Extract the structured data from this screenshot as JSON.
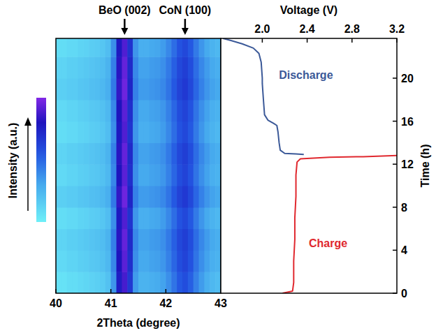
{
  "chart_data": [
    {
      "type": "heatmap",
      "xlabel": "2Theta (degree)",
      "xlim": [
        40,
        43
      ],
      "xticks": [
        40,
        41,
        42,
        43
      ],
      "ylim": [
        0,
        23.7
      ],
      "tick_labels": "x",
      "x": [
        40.05,
        40.15,
        40.25,
        40.35,
        40.45,
        40.55,
        40.65,
        40.75,
        40.85,
        40.95,
        41.05,
        41.15,
        41.25,
        41.35,
        41.45,
        41.55,
        41.65,
        41.75,
        41.85,
        41.95,
        42.05,
        42.15,
        42.25,
        42.35,
        42.45,
        42.55,
        42.65,
        42.75,
        42.85,
        42.95
      ],
      "y": [
        1,
        3,
        5,
        7,
        9,
        11,
        13,
        15,
        17,
        19,
        21,
        23
      ],
      "cells": [
        [
          0.06,
          0.06,
          0.08,
          0.08,
          0.1,
          0.11,
          0.13,
          0.14,
          0.16,
          0.2,
          0.36,
          0.76,
          0.88,
          0.66,
          0.34,
          0.26,
          0.26,
          0.28,
          0.29,
          0.32,
          0.38,
          0.46,
          0.54,
          0.58,
          0.52,
          0.42,
          0.34,
          0.28,
          0.24,
          0.22
        ],
        [
          0.1,
          0.1,
          0.12,
          0.12,
          0.14,
          0.15,
          0.17,
          0.18,
          0.2,
          0.24,
          0.4,
          0.8,
          0.92,
          0.7,
          0.38,
          0.3,
          0.3,
          0.32,
          0.33,
          0.36,
          0.42,
          0.5,
          0.58,
          0.62,
          0.56,
          0.46,
          0.38,
          0.32,
          0.28,
          0.26
        ],
        [
          0.12,
          0.12,
          0.14,
          0.14,
          0.16,
          0.17,
          0.19,
          0.2,
          0.22,
          0.26,
          0.42,
          0.82,
          0.94,
          0.72,
          0.4,
          0.32,
          0.32,
          0.34,
          0.35,
          0.38,
          0.44,
          0.52,
          0.6,
          0.64,
          0.58,
          0.48,
          0.4,
          0.34,
          0.3,
          0.28
        ],
        [
          0.08,
          0.08,
          0.1,
          0.1,
          0.12,
          0.13,
          0.15,
          0.16,
          0.18,
          0.22,
          0.38,
          0.78,
          0.9,
          0.68,
          0.36,
          0.28,
          0.28,
          0.3,
          0.31,
          0.34,
          0.4,
          0.48,
          0.56,
          0.6,
          0.54,
          0.44,
          0.36,
          0.3,
          0.26,
          0.24
        ],
        [
          0.14,
          0.14,
          0.16,
          0.16,
          0.18,
          0.19,
          0.21,
          0.22,
          0.24,
          0.28,
          0.44,
          0.84,
          0.96,
          0.74,
          0.42,
          0.34,
          0.34,
          0.36,
          0.37,
          0.4,
          0.46,
          0.54,
          0.62,
          0.66,
          0.6,
          0.5,
          0.42,
          0.36,
          0.32,
          0.3
        ],
        [
          0.1,
          0.1,
          0.12,
          0.12,
          0.14,
          0.15,
          0.17,
          0.18,
          0.2,
          0.24,
          0.4,
          0.8,
          0.92,
          0.7,
          0.38,
          0.3,
          0.3,
          0.32,
          0.33,
          0.36,
          0.42,
          0.5,
          0.58,
          0.62,
          0.56,
          0.46,
          0.38,
          0.32,
          0.28,
          0.26
        ],
        [
          0.12,
          0.12,
          0.14,
          0.14,
          0.16,
          0.17,
          0.19,
          0.2,
          0.22,
          0.26,
          0.42,
          0.82,
          0.94,
          0.72,
          0.4,
          0.32,
          0.32,
          0.34,
          0.35,
          0.38,
          0.44,
          0.52,
          0.6,
          0.64,
          0.58,
          0.48,
          0.4,
          0.34,
          0.3,
          0.28
        ],
        [
          0.08,
          0.08,
          0.1,
          0.1,
          0.12,
          0.13,
          0.15,
          0.16,
          0.18,
          0.22,
          0.38,
          0.78,
          0.9,
          0.68,
          0.36,
          0.28,
          0.28,
          0.3,
          0.31,
          0.34,
          0.4,
          0.48,
          0.56,
          0.6,
          0.54,
          0.44,
          0.36,
          0.3,
          0.26,
          0.24
        ],
        [
          0.1,
          0.1,
          0.12,
          0.12,
          0.14,
          0.15,
          0.17,
          0.18,
          0.2,
          0.24,
          0.4,
          0.8,
          0.92,
          0.7,
          0.38,
          0.3,
          0.3,
          0.32,
          0.33,
          0.36,
          0.42,
          0.5,
          0.58,
          0.62,
          0.56,
          0.46,
          0.38,
          0.32,
          0.28,
          0.26
        ],
        [
          0.14,
          0.14,
          0.16,
          0.16,
          0.18,
          0.19,
          0.21,
          0.22,
          0.24,
          0.28,
          0.44,
          0.84,
          0.96,
          0.74,
          0.42,
          0.34,
          0.34,
          0.36,
          0.37,
          0.4,
          0.46,
          0.54,
          0.62,
          0.66,
          0.6,
          0.5,
          0.42,
          0.36,
          0.32,
          0.3
        ],
        [
          0.12,
          0.12,
          0.14,
          0.14,
          0.16,
          0.17,
          0.19,
          0.2,
          0.22,
          0.26,
          0.42,
          0.82,
          0.94,
          0.72,
          0.4,
          0.32,
          0.32,
          0.34,
          0.35,
          0.38,
          0.44,
          0.52,
          0.6,
          0.64,
          0.58,
          0.48,
          0.4,
          0.34,
          0.3,
          0.28
        ],
        [
          0.08,
          0.08,
          0.1,
          0.1,
          0.12,
          0.13,
          0.15,
          0.16,
          0.18,
          0.22,
          0.38,
          0.78,
          0.9,
          0.68,
          0.36,
          0.28,
          0.28,
          0.3,
          0.31,
          0.34,
          0.4,
          0.48,
          0.56,
          0.6,
          0.54,
          0.44,
          0.36,
          0.3,
          0.26,
          0.24
        ]
      ],
      "colorbar": {
        "label": "Intensity (a.u.)",
        "range": [
          0,
          1
        ]
      },
      "annotations": [
        {
          "text": "BeO (002)",
          "x": 41.25
        },
        {
          "text": "CoN (100)",
          "x": 42.35
        }
      ]
    },
    {
      "type": "line",
      "xlabel": "Voltage (V)",
      "ylabel": "Time (h)",
      "xlim": [
        1.63,
        3.2
      ],
      "xticks": [
        {
          "value": 2.0,
          "label": "2.0"
        },
        {
          "value": 2.4,
          "label": "2.4"
        },
        {
          "value": 2.8,
          "label": "2.8"
        },
        {
          "value": 3.2,
          "label": "3.2"
        }
      ],
      "ylim": [
        0,
        23.7
      ],
      "yticks": [
        0,
        4,
        8,
        12,
        16,
        20
      ],
      "series": [
        {
          "name": "Discharge",
          "color": "#3b5998",
          "x": [
            2.37,
            2.3,
            2.2,
            2.16,
            2.15,
            2.14,
            2.13,
            2.1,
            2.05,
            2.02,
            2.01,
            2.0,
            2.0,
            1.99,
            1.97,
            1.92,
            1.82,
            1.72,
            1.65
          ],
          "values": [
            12.9,
            12.95,
            13.0,
            13.3,
            14.0,
            15.0,
            15.6,
            15.8,
            16.1,
            16.6,
            18.0,
            19.5,
            20.0,
            21.5,
            22.3,
            22.8,
            23.2,
            23.5,
            23.7
          ]
        },
        {
          "name": "Charge",
          "color": "#e0282e",
          "x": [
            2.18,
            2.27,
            2.28,
            2.28,
            2.29,
            2.29,
            2.3,
            2.3,
            2.31,
            2.34,
            2.6,
            2.9,
            3.2
          ],
          "values": [
            0.0,
            0.2,
            1.0,
            3.0,
            5.0,
            7.0,
            9.0,
            11.0,
            12.2,
            12.5,
            12.65,
            12.7,
            12.8
          ]
        }
      ]
    }
  ]
}
